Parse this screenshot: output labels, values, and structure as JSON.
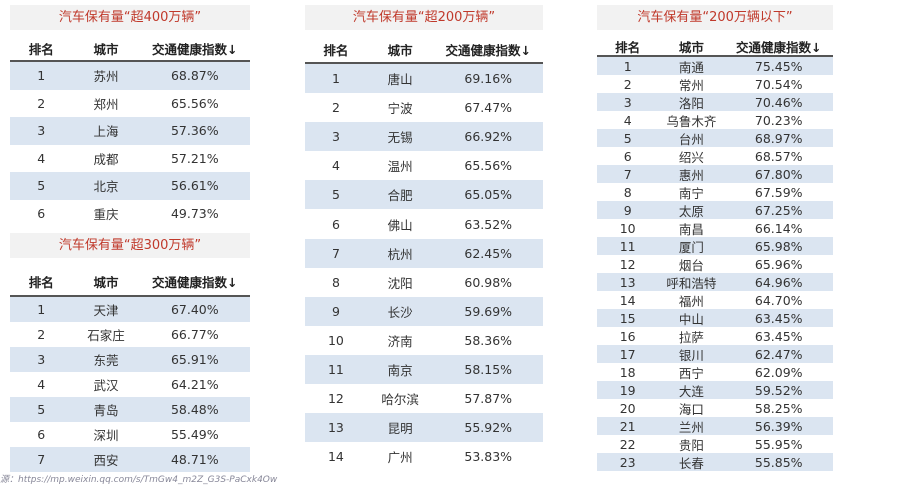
{
  "tables": [
    {
      "title": "汽车保有量“超400万辆”",
      "columns": [
        "排名",
        "城市",
        "交通健康指数↓"
      ],
      "rows": [
        [
          "1",
          "苏州",
          "68.87%"
        ],
        [
          "2",
          "郑州",
          "65.56%"
        ],
        [
          "3",
          "上海",
          "57.36%"
        ],
        [
          "4",
          "成都",
          "57.21%"
        ],
        [
          "5",
          "北京",
          "56.61%"
        ],
        [
          "6",
          "重庆",
          "49.73%"
        ]
      ]
    },
    {
      "title": "汽车保有量“超300万辆”",
      "columns": [
        "排名",
        "城市",
        "交通健康指数↓"
      ],
      "rows": [
        [
          "1",
          "天津",
          "67.40%"
        ],
        [
          "2",
          "石家庄",
          "66.77%"
        ],
        [
          "3",
          "东莞",
          "65.91%"
        ],
        [
          "4",
          "武汉",
          "64.21%"
        ],
        [
          "5",
          "青岛",
          "58.48%"
        ],
        [
          "6",
          "深圳",
          "55.49%"
        ],
        [
          "7",
          "西安",
          "48.71%"
        ]
      ]
    },
    {
      "title": "汽车保有量“超200万辆”",
      "columns": [
        "排名",
        "城市",
        "交通健康指数↓"
      ],
      "rows": [
        [
          "1",
          "唐山",
          "69.16%"
        ],
        [
          "2",
          "宁波",
          "67.47%"
        ],
        [
          "3",
          "无锡",
          "66.92%"
        ],
        [
          "4",
          "温州",
          "65.56%"
        ],
        [
          "5",
          "合肥",
          "65.05%"
        ],
        [
          "6",
          "佛山",
          "63.52%"
        ],
        [
          "7",
          "杭州",
          "62.45%"
        ],
        [
          "8",
          "沈阳",
          "60.98%"
        ],
        [
          "9",
          "长沙",
          "59.69%"
        ],
        [
          "10",
          "济南",
          "58.36%"
        ],
        [
          "11",
          "南京",
          "58.15%"
        ],
        [
          "12",
          "哈尔滨",
          "57.87%"
        ],
        [
          "13",
          "昆明",
          "55.92%"
        ],
        [
          "14",
          "广州",
          "53.83%"
        ]
      ]
    },
    {
      "title": "汽车保有量“200万辆以下”",
      "columns": [
        "排名",
        "城市",
        "交通健康指数↓"
      ],
      "rows": [
        [
          "1",
          "南通",
          "75.45%"
        ],
        [
          "2",
          "常州",
          "70.54%"
        ],
        [
          "3",
          "洛阳",
          "70.46%"
        ],
        [
          "4",
          "乌鲁木齐",
          "70.23%"
        ],
        [
          "5",
          "台州",
          "68.97%"
        ],
        [
          "6",
          "绍兴",
          "68.57%"
        ],
        [
          "7",
          "惠州",
          "67.80%"
        ],
        [
          "8",
          "南宁",
          "67.59%"
        ],
        [
          "9",
          "太原",
          "67.25%"
        ],
        [
          "10",
          "南昌",
          "66.14%"
        ],
        [
          "11",
          "厦门",
          "65.98%"
        ],
        [
          "12",
          "烟台",
          "65.96%"
        ],
        [
          "13",
          "呼和浩特",
          "64.96%"
        ],
        [
          "14",
          "福州",
          "64.70%"
        ],
        [
          "15",
          "中山",
          "63.45%"
        ],
        [
          "16",
          "拉萨",
          "63.45%"
        ],
        [
          "17",
          "银川",
          "62.47%"
        ],
        [
          "18",
          "西宁",
          "62.09%"
        ],
        [
          "19",
          "大连",
          "59.52%"
        ],
        [
          "20",
          "海口",
          "58.25%"
        ],
        [
          "21",
          "兰州",
          "56.39%"
        ],
        [
          "22",
          "贵阳",
          "55.95%"
        ],
        [
          "23",
          "长春",
          "55.85%"
        ]
      ]
    }
  ],
  "source": "源：https://mp.weixin.qq.com/s/TmGw4_m2Z_G3S-PaCxk4Ow"
}
